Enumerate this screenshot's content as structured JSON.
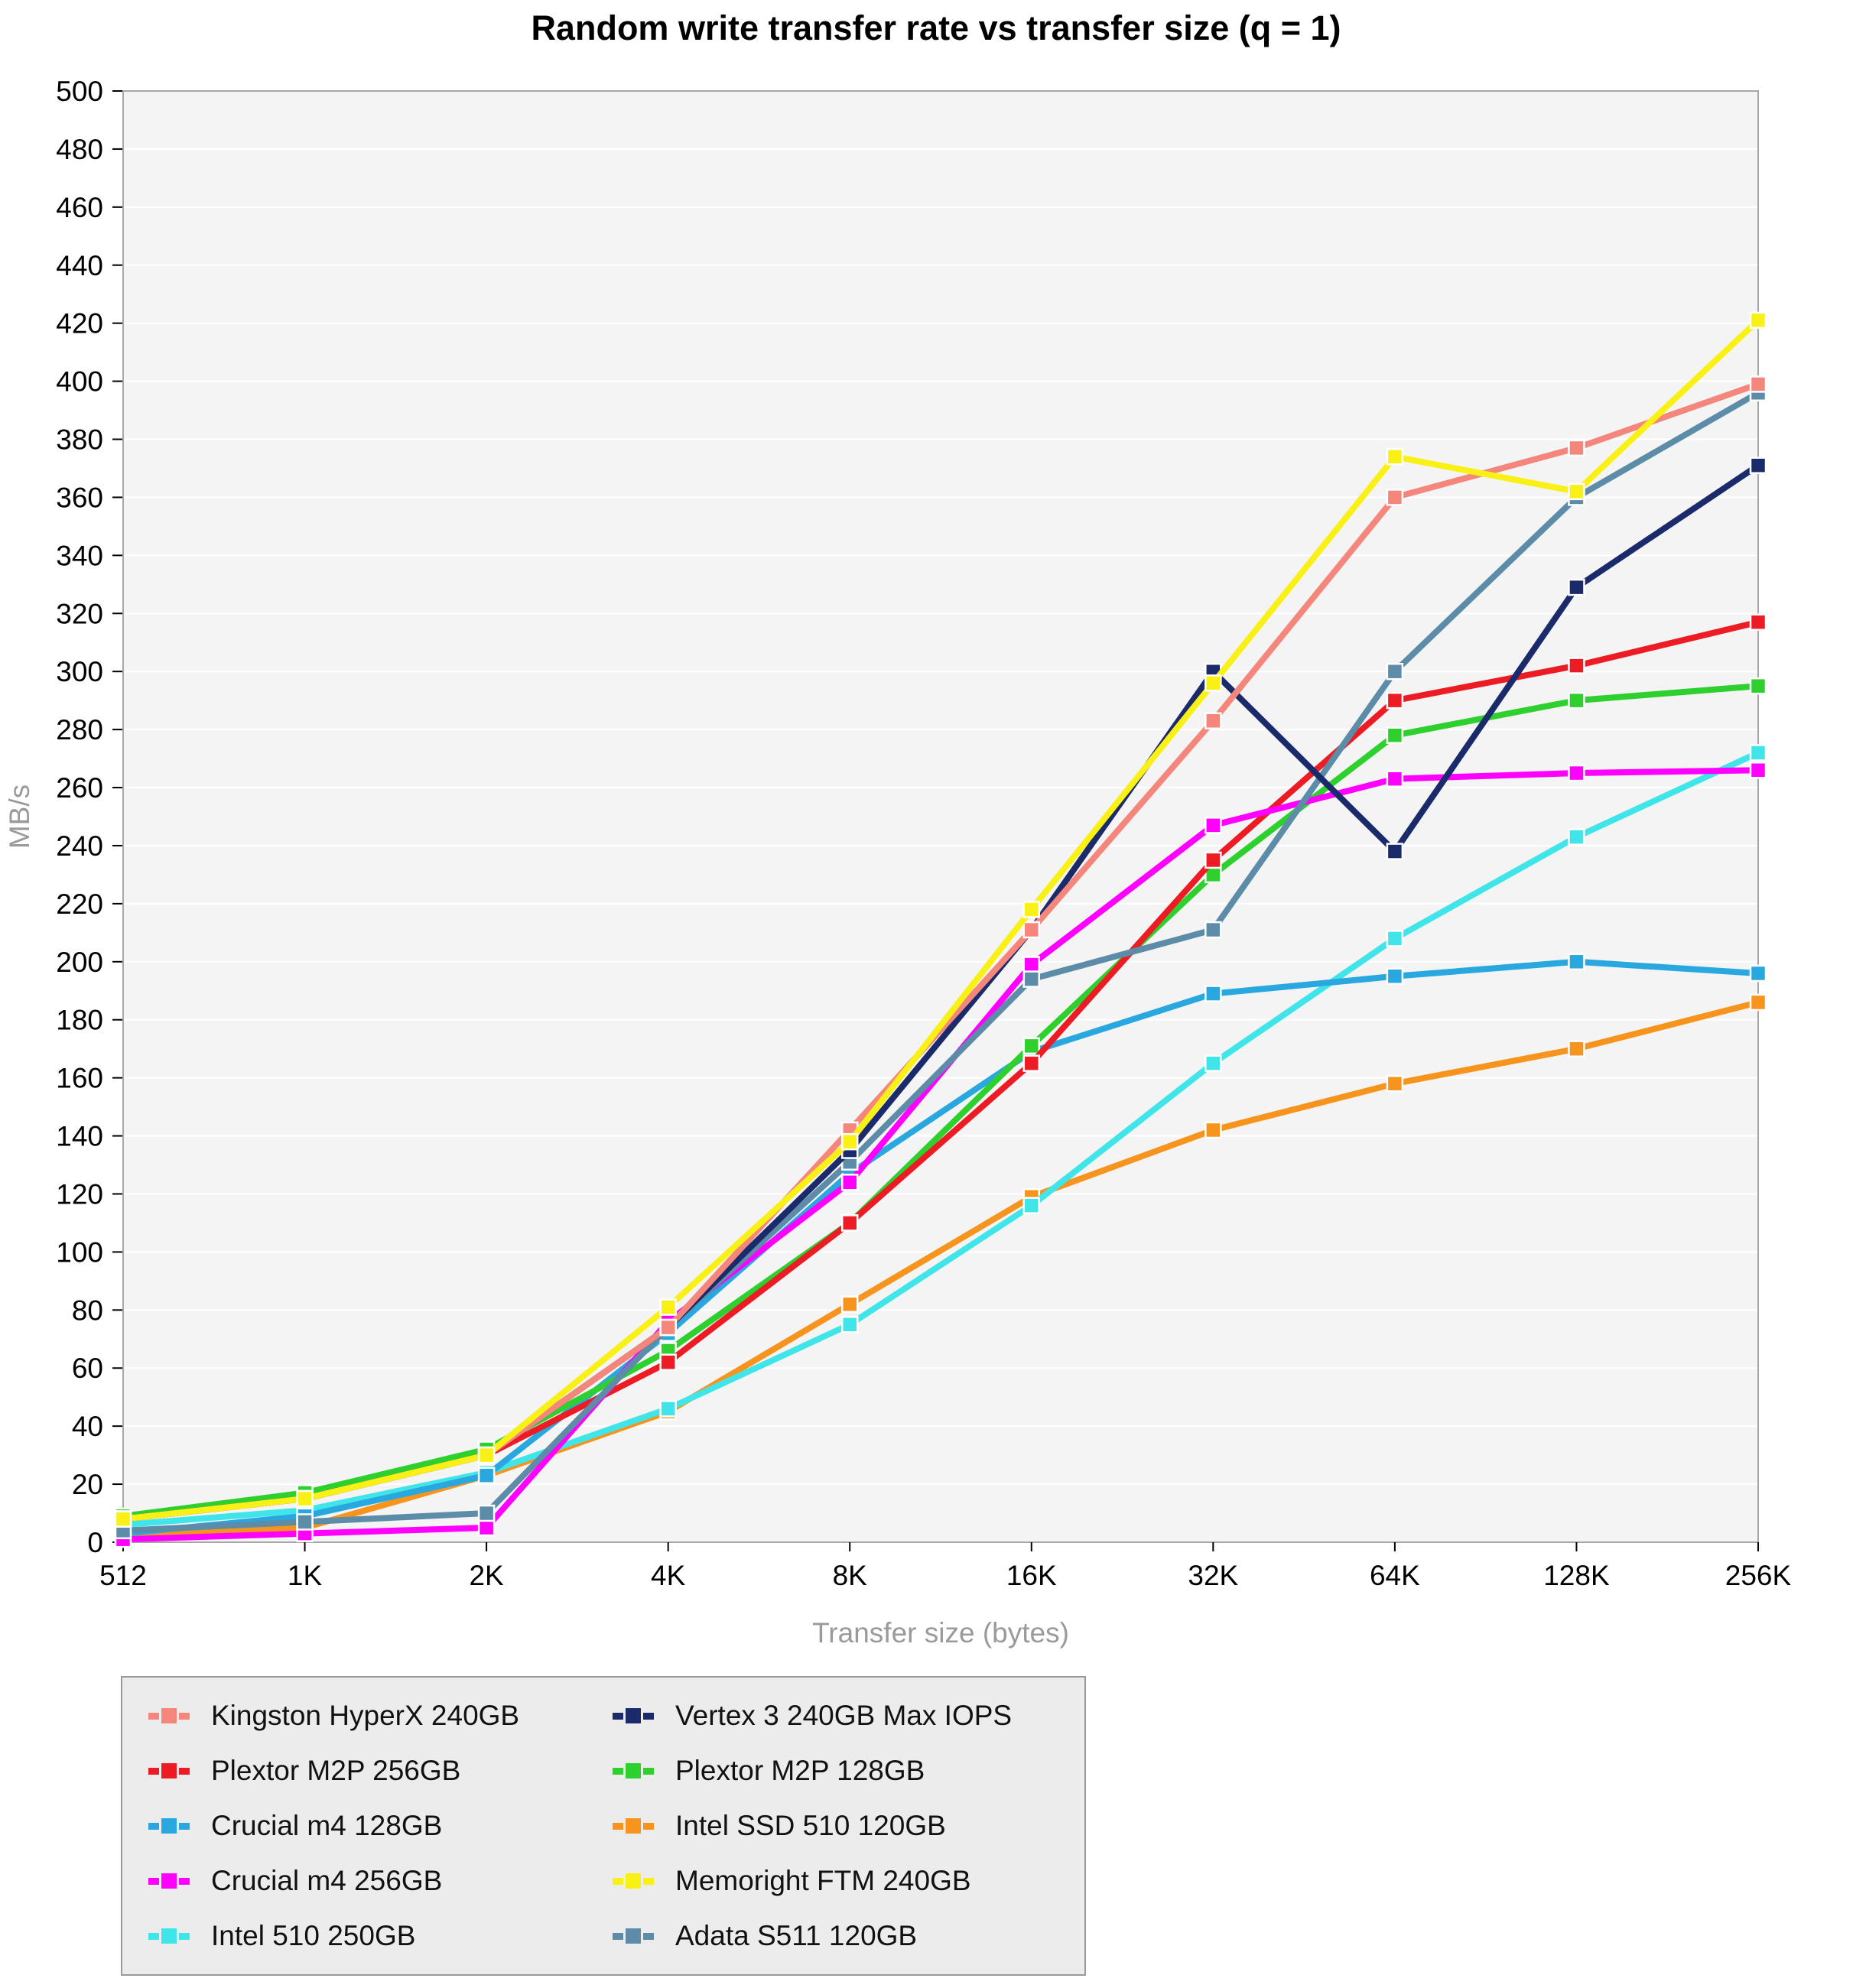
{
  "chart_data": {
    "type": "line",
    "title": "Random write transfer rate vs transfer size (q = 1)",
    "xlabel": "Transfer size (bytes)",
    "ylabel": "MB/s",
    "ylim": [
      0,
      500
    ],
    "ytick_step": 20,
    "grid": "horizontal",
    "legend_position": "bottom-left",
    "plot_background": "#F4F4F4",
    "gridline_color": "#FFFFFF",
    "plot_border_color": "#A6A6A6",
    "categories": [
      "512",
      "1K",
      "2K",
      "4K",
      "8K",
      "16K",
      "32K",
      "64K",
      "128K",
      "256K"
    ],
    "series": [
      {
        "name": "Kingston HyperX 240GB",
        "color": "#F5867B",
        "values": [
          8,
          15,
          30,
          74,
          142,
          211,
          283,
          360,
          377,
          399
        ]
      },
      {
        "name": "Plextor M2P 256GB",
        "color": "#ED1C24",
        "values": [
          8,
          15,
          30,
          62,
          110,
          165,
          235,
          290,
          302,
          317
        ]
      },
      {
        "name": "Crucial m4 128GB",
        "color": "#29A8E0",
        "values": [
          3,
          9,
          23,
          72,
          127,
          169,
          189,
          195,
          200,
          196
        ]
      },
      {
        "name": "Crucial m4 256GB",
        "color": "#FF00FF",
        "values": [
          1,
          3,
          5,
          76,
          124,
          199,
          247,
          263,
          265,
          266
        ]
      },
      {
        "name": "Intel 510 250GB",
        "color": "#3FE5E8",
        "values": [
          6,
          11,
          24,
          46,
          75,
          116,
          165,
          208,
          243,
          272
        ]
      },
      {
        "name": "Vertex 3 240GB Max IOPS",
        "color": "#1B2A6B",
        "values": [
          8,
          15,
          30,
          74,
          135,
          211,
          300,
          238,
          329,
          371
        ]
      },
      {
        "name": "Plextor M2P 128GB",
        "color": "#2ED02E",
        "values": [
          9,
          17,
          32,
          66,
          110,
          171,
          230,
          278,
          290,
          295
        ]
      },
      {
        "name": "Intel SSD 510 120GB",
        "color": "#F7941D",
        "values": [
          2,
          5,
          23,
          45,
          82,
          119,
          142,
          158,
          170,
          186
        ]
      },
      {
        "name": "Memoright FTM 240GB",
        "color": "#F9F115",
        "values": [
          8,
          15,
          30,
          81,
          138,
          218,
          296,
          374,
          362,
          421
        ]
      },
      {
        "name": "Adata S511 120GB",
        "color": "#5C8CA8",
        "values": [
          4,
          7,
          10,
          74,
          131,
          194,
          211,
          300,
          360,
          396
        ]
      }
    ],
    "z_order": [
      7,
      4,
      2,
      6,
      1,
      3,
      9,
      5,
      0,
      8
    ]
  }
}
